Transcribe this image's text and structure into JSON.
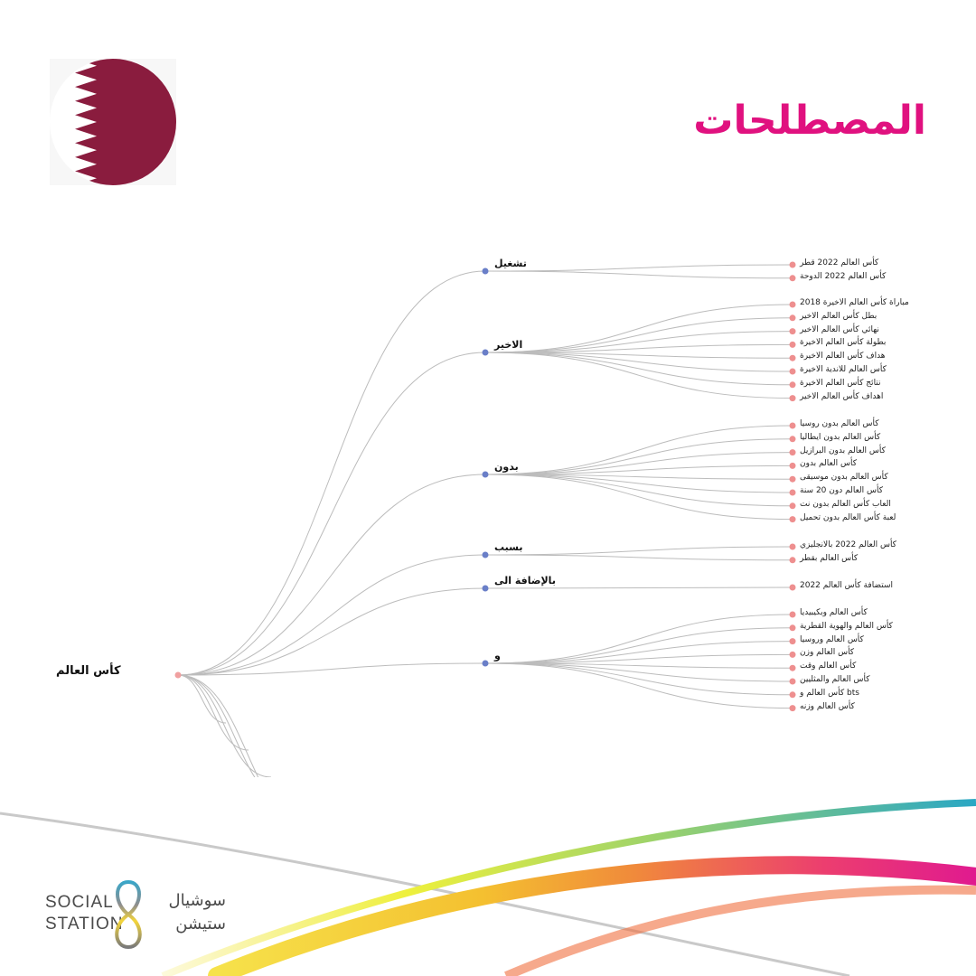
{
  "title": "المصطلحات",
  "tree": {
    "root": "كأس العالم",
    "branches": [
      {
        "label": "تشغيل",
        "leaves": [
          "كأس العالم 2022 قطر",
          "كأس العالم 2022 الدوحة"
        ]
      },
      {
        "label": "الاخير",
        "leaves": [
          "مباراة كأس العالم الاخيرة 2018",
          "بطل كأس العالم الاخير",
          "نهائي كأس العالم الاخير",
          "بطولة كأس العالم الاخيرة",
          "هداف كأس العالم الاخيرة",
          "كأس العالم للاندية الاخيرة",
          "نتائج كأس العالم الاخيرة",
          "اهداف كأس العالم الاخير"
        ]
      },
      {
        "label": "بدون",
        "leaves": [
          "كأس العالم بدون روسيا",
          "كأس العالم بدون ايطاليا",
          "كأس العالم بدون البرازيل",
          "كأس العالم بدون",
          "كأس العالم بدون موسيقى",
          "كأس العالم دون 20 سنة",
          "العاب كأس العالم بدون نت",
          "لعبة كأس العالم بدون تحميل"
        ]
      },
      {
        "label": "بسبب",
        "leaves": [
          "كأس العالم 2022 بالانجليزي",
          "كأس العالم بقطر"
        ]
      },
      {
        "label": "بالإضافة الى",
        "leaves": [
          "استضافة كأس العالم 2022"
        ]
      },
      {
        "label": "و",
        "leaves": [
          "كأس العالم وبكيبيديا",
          "كأس العالم والهوية القطرية",
          "كأس العالم وروسيا",
          "كأس العالم وزن",
          "كأس العالم وقت",
          "كأس العالم والمثليين",
          "bts كأس العالم و",
          "كأس العالم وزنه"
        ]
      }
    ]
  },
  "brand": {
    "name_en_line1": "SOCIAL",
    "name_en_line2": "STATION",
    "name_ar_line1": "سوشيال",
    "name_ar_line2": "ستيشن"
  },
  "colors": {
    "accent": "#e0117f",
    "flag_maroon": "#8a1c3e",
    "root_dot": "#f0a0a0",
    "branch_dot": "#6a7fc8",
    "leaf_dot": "#ee8f8f",
    "link": "#bcbcbc"
  }
}
